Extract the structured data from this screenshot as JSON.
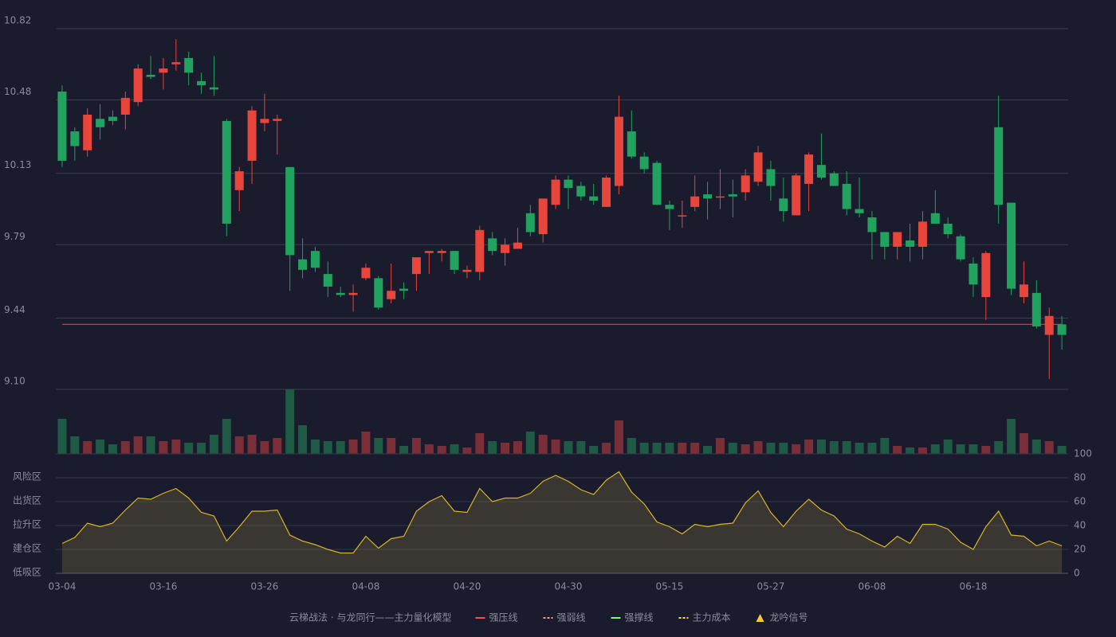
{
  "chart_data": [
    {
      "type": "candlestick",
      "categories": [
        "03-04",
        null,
        null,
        null,
        null,
        null,
        null,
        null,
        "03-16",
        null,
        null,
        null,
        null,
        null,
        null,
        null,
        "03-26",
        null,
        null,
        null,
        null,
        null,
        null,
        null,
        "04-08",
        null,
        null,
        null,
        null,
        null,
        null,
        null,
        "04-20",
        null,
        null,
        null,
        null,
        null,
        null,
        null,
        "04-30",
        null,
        null,
        null,
        null,
        null,
        null,
        null,
        "05-15",
        null,
        null,
        null,
        null,
        null,
        null,
        null,
        "05-27",
        null,
        null,
        null,
        null,
        null,
        null,
        null,
        "06-08",
        null,
        null,
        null,
        null,
        null,
        null,
        null,
        "06-18",
        null,
        null,
        null,
        null,
        null,
        null,
        null
      ],
      "open": [
        10.52,
        10.33,
        10.24,
        10.39,
        10.4,
        10.41,
        10.47,
        10.6,
        10.61,
        10.65,
        10.68,
        10.57,
        10.54,
        10.38,
        10.05,
        10.19,
        10.37,
        10.38,
        10.16,
        9.72,
        9.76,
        9.65,
        9.56,
        9.55,
        9.63,
        9.63,
        9.53,
        9.58,
        9.65,
        9.75,
        9.75,
        9.76,
        9.66,
        9.66,
        9.82,
        9.75,
        9.77,
        9.94,
        9.84,
        9.98,
        10.1,
        10.07,
        10.02,
        9.97,
        10.07,
        10.33,
        10.21,
        10.18,
        9.98,
        9.93,
        9.97,
        10.03,
        10.02,
        10.03,
        10.04,
        10.09,
        10.15,
        10.01,
        9.93,
        10.08,
        10.17,
        10.13,
        10.08,
        9.96,
        9.92,
        9.85,
        9.78,
        9.81,
        9.78,
        9.94,
        9.89,
        9.83,
        9.7,
        9.54,
        10.35,
        9.99,
        9.54,
        9.56,
        9.36,
        9.41
      ],
      "high": [
        10.55,
        10.35,
        10.44,
        10.46,
        10.43,
        10.52,
        10.65,
        10.69,
        10.68,
        10.77,
        10.71,
        10.61,
        10.69,
        10.39,
        10.16,
        10.45,
        10.51,
        10.41,
        10.16,
        9.82,
        9.78,
        9.71,
        9.59,
        9.6,
        9.7,
        9.64,
        9.7,
        9.61,
        9.73,
        9.76,
        9.77,
        9.76,
        9.69,
        9.88,
        9.85,
        9.82,
        9.87,
        9.98,
        10.01,
        10.12,
        10.12,
        10.09,
        10.08,
        10.12,
        10.5,
        10.43,
        10.23,
        10.19,
        10.0,
        10.0,
        10.12,
        10.09,
        10.15,
        10.1,
        10.15,
        10.26,
        10.19,
        10.11,
        10.13,
        10.23,
        10.32,
        10.14,
        10.14,
        10.11,
        9.95,
        9.85,
        9.85,
        9.89,
        9.95,
        10.05,
        9.92,
        9.84,
        9.73,
        9.76,
        10.5,
        9.99,
        9.71,
        9.62,
        9.49,
        9.45
      ],
      "low": [
        10.16,
        10.19,
        10.21,
        10.29,
        10.36,
        10.34,
        10.45,
        10.58,
        10.53,
        10.62,
        10.55,
        10.51,
        10.5,
        9.83,
        9.95,
        10.08,
        10.33,
        10.22,
        9.57,
        9.63,
        9.66,
        9.54,
        9.54,
        9.47,
        9.62,
        9.48,
        9.51,
        9.53,
        9.57,
        9.65,
        9.71,
        9.65,
        9.63,
        9.62,
        9.74,
        9.69,
        9.77,
        9.83,
        9.8,
        9.96,
        9.96,
        10.0,
        9.98,
        9.97,
        10.03,
        10.2,
        10.13,
        9.98,
        9.86,
        9.87,
        9.95,
        9.91,
        9.96,
        9.92,
        10.0,
        10.07,
        10.0,
        9.9,
        9.93,
        9.95,
        10.1,
        10.07,
        9.93,
        9.92,
        9.72,
        9.72,
        9.72,
        9.71,
        9.72,
        9.89,
        9.82,
        9.71,
        9.54,
        9.43,
        9.89,
        9.55,
        9.51,
        9.39,
        9.15,
        9.29
      ],
      "close": [
        10.19,
        10.26,
        10.41,
        10.35,
        10.38,
        10.49,
        10.63,
        10.59,
        10.63,
        10.66,
        10.61,
        10.55,
        10.53,
        9.89,
        10.14,
        10.43,
        10.39,
        10.39,
        9.74,
        9.67,
        9.68,
        9.59,
        9.55,
        9.56,
        9.68,
        9.49,
        9.57,
        9.57,
        9.73,
        9.76,
        9.76,
        9.67,
        9.67,
        9.86,
        9.76,
        9.79,
        9.8,
        9.85,
        10.01,
        10.1,
        10.06,
        10.02,
        10.0,
        10.11,
        10.4,
        10.21,
        10.15,
        9.98,
        9.96,
        9.93,
        10.02,
        10.01,
        10.02,
        10.02,
        10.12,
        10.23,
        10.07,
        9.95,
        10.12,
        10.22,
        10.11,
        10.07,
        9.96,
        9.94,
        9.85,
        9.78,
        9.85,
        9.78,
        9.9,
        9.89,
        9.84,
        9.72,
        9.6,
        9.75,
        9.98,
        9.58,
        9.6,
        9.4,
        9.45,
        9.36
      ],
      "up_color": "#e8453c",
      "down_color": "#21a35f",
      "ylim": [
        9.1,
        10.82
      ],
      "yticks": [
        {
          "value": 9.1,
          "label": "9.10"
        },
        9.44,
        9.79,
        10.13,
        10.48,
        10.82
      ],
      "grid": true,
      "reference_lines": [
        {
          "value": 9.41,
          "color": "#e0304a"
        }
      ]
    },
    {
      "type": "bar",
      "values": [
        44,
        22,
        16,
        18,
        12,
        16,
        22,
        22,
        16,
        18,
        14,
        14,
        24,
        44,
        22,
        24,
        16,
        20,
        81,
        36,
        18,
        16,
        16,
        18,
        28,
        20,
        20,
        10,
        20,
        12,
        10,
        12,
        8,
        26,
        16,
        14,
        16,
        28,
        24,
        18,
        16,
        16,
        10,
        14,
        42,
        20,
        14,
        14,
        14,
        14,
        14,
        10,
        20,
        14,
        12,
        16,
        14,
        14,
        12,
        18,
        18,
        16,
        16,
        14,
        14,
        20,
        10,
        8,
        8,
        12,
        18,
        12,
        12,
        10,
        16,
        44,
        26,
        18,
        16,
        10
      ],
      "up_color": "#7a2e37",
      "down_color": "#1e5a44",
      "ylim": [
        0,
        81
      ]
    },
    {
      "type": "area",
      "values": [
        25,
        30,
        42,
        39,
        42,
        53,
        63,
        62,
        67,
        71,
        63,
        51,
        48,
        27,
        39,
        52,
        52,
        53,
        32,
        27,
        24,
        20,
        17,
        17,
        31,
        21,
        29,
        31,
        52,
        60,
        65,
        52,
        51,
        71,
        60,
        63,
        63,
        67,
        77,
        82,
        77,
        70,
        66,
        78,
        85,
        68,
        58,
        43,
        39,
        33,
        41,
        39,
        41,
        42,
        59,
        69,
        51,
        39,
        52,
        62,
        53,
        48,
        37,
        33,
        27,
        22,
        31,
        25,
        41,
        41,
        37,
        26,
        20,
        39,
        52,
        32,
        31,
        23,
        27,
        23
      ],
      "color": "#d9b526",
      "fill": "rgba(120,105,60,0.35)",
      "ylim": [
        0,
        100
      ],
      "yticks": [
        0,
        20,
        40,
        60,
        80,
        100
      ],
      "ytick_colors": [
        "#ff4d4d",
        "#ffa64d",
        "#4d9aff",
        "#e84de8",
        "#ffa64d",
        "#4dff4d"
      ],
      "zones": [
        {
          "label": "风险区",
          "value": 80,
          "color": "#ffa64d"
        },
        {
          "label": "出货区",
          "value": 60,
          "color": "#e84de8"
        },
        {
          "label": "拉升区",
          "value": 40,
          "color": "#4d9aff"
        },
        {
          "label": "建仓区",
          "value": 20,
          "color": "#ff6060"
        },
        {
          "label": "低吸区",
          "value": 0,
          "color": "#ff4d4d"
        }
      ],
      "grid": true
    }
  ],
  "legend": {
    "title": "云梯战法 · 与龙同行——主力量化模型",
    "title_color": "#e8b84d",
    "items": [
      {
        "name": "强压线",
        "color": "#ff4d4d",
        "style": "solid"
      },
      {
        "name": "强弱线",
        "color": "#ff8fa3",
        "style": "dashed"
      },
      {
        "name": "强撑线",
        "color": "#7dff6a",
        "style": "solid"
      },
      {
        "name": "主力成本",
        "color": "#ffd84d",
        "style": "dashed"
      },
      {
        "name": "龙吟信号",
        "color": "#ffc933",
        "style": "triangle"
      }
    ]
  }
}
